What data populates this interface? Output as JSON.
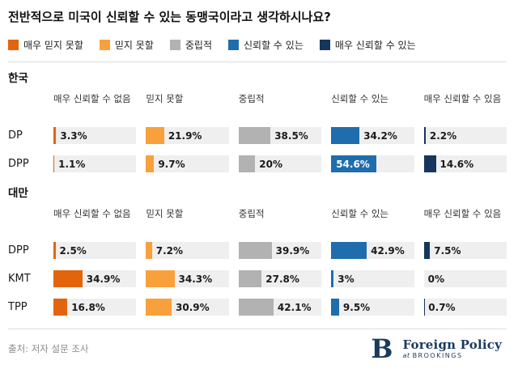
{
  "title": "전반적으로 미국이 신뢰할 수 있는 동맹국이라고 생각하시나요?",
  "legend": [
    {
      "label": "매우 믿지 못할",
      "color": "#e2650d"
    },
    {
      "label": "믿지 못할",
      "color": "#f8a13c"
    },
    {
      "label": "중립적",
      "color": "#b2b2b2"
    },
    {
      "label": "신뢰할 수 있는",
      "color": "#1f6dad"
    },
    {
      "label": "매우 신뢰할 수 있는",
      "color": "#16365c"
    }
  ],
  "columns": [
    "매우 신뢰할 수 없음",
    "믿지 못할",
    "중립적",
    "신뢰할 수 있는",
    "매우 신뢰할 수 있음"
  ],
  "chart_data": {
    "type": "bar",
    "title": "전반적으로 미국이 신뢰할 수 있는 동맹국이라고 생각하시나요?",
    "categories": [
      "매우 신뢰할 수 없음",
      "믿지 못할",
      "중립적",
      "신뢰할 수 있는",
      "매우 신뢰할 수 있음"
    ],
    "unit": "%",
    "xlim": [
      0,
      100
    ],
    "legend_position": "top",
    "groups": [
      {
        "group": "한국",
        "rows": [
          {
            "name": "DP",
            "values": [
              3.3,
              21.9,
              38.5,
              34.2,
              2.2
            ],
            "labels": [
              "3.3%",
              "21.9%",
              "38.5%",
              "34.2%",
              "2.2%"
            ]
          },
          {
            "name": "DPP",
            "values": [
              1.1,
              9.7,
              20,
              54.6,
              14.6
            ],
            "labels": [
              "1.1%",
              "9.7%",
              "20%",
              "54.6%",
              "14.6%"
            ]
          }
        ]
      },
      {
        "group": "대만",
        "rows": [
          {
            "name": "DPP",
            "values": [
              2.5,
              7.2,
              39.9,
              42.9,
              7.5
            ],
            "labels": [
              "2.5%",
              "7.2%",
              "39.9%",
              "42.9%",
              "7.5%"
            ]
          },
          {
            "name": "KMT",
            "values": [
              34.9,
              34.3,
              27.8,
              3,
              0
            ],
            "labels": [
              "34.9%",
              "34.3%",
              "27.8%",
              "3%",
              "0%"
            ]
          },
          {
            "name": "TPP",
            "values": [
              16.8,
              30.9,
              42.1,
              9.5,
              0.7
            ],
            "labels": [
              "16.8%",
              "30.9%",
              "42.1%",
              "9.5%",
              "0.7%"
            ]
          }
        ]
      }
    ]
  },
  "footer": {
    "source": "출처: 저자 설문 조사",
    "logo_letter": "B",
    "logo_title": "Foreign Policy",
    "logo_at": "at",
    "logo_org": "BROOKINGS"
  }
}
